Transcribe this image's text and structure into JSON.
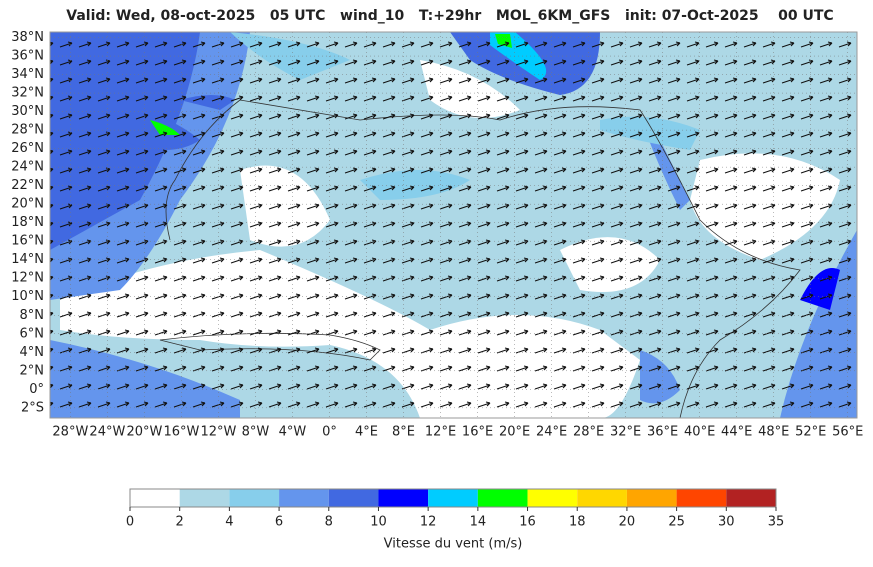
{
  "map": {
    "title": "Valid: Wed, 08-oct-2025   05 UTC   wind_10   T:+29hr   MOL_6KM_GFS   init: 07-Oct-2025    00 UTC",
    "lat_ticks": [
      {
        "value": 38,
        "label": "38°N"
      },
      {
        "value": 36,
        "label": "36°N"
      },
      {
        "value": 34,
        "label": "34°N"
      },
      {
        "value": 32,
        "label": "32°N"
      },
      {
        "value": 30,
        "label": "30°N"
      },
      {
        "value": 28,
        "label": "28°N"
      },
      {
        "value": 26,
        "label": "26°N"
      },
      {
        "value": 24,
        "label": "24°N"
      },
      {
        "value": 22,
        "label": "22°N"
      },
      {
        "value": 20,
        "label": "20°N"
      },
      {
        "value": 18,
        "label": "18°N"
      },
      {
        "value": 16,
        "label": "16°N"
      },
      {
        "value": 14,
        "label": "14°N"
      },
      {
        "value": 12,
        "label": "12°N"
      },
      {
        "value": 10,
        "label": "10°N"
      },
      {
        "value": 8,
        "label": "8°N"
      },
      {
        "value": 6,
        "label": "6°N"
      },
      {
        "value": 4,
        "label": "4°N"
      },
      {
        "value": 2,
        "label": "2°N"
      },
      {
        "value": 0,
        "label": "0°"
      },
      {
        "value": -2,
        "label": "2°S"
      }
    ],
    "lon_ticks": [
      {
        "value": -28,
        "label": "28°W"
      },
      {
        "value": -24,
        "label": "24°W"
      },
      {
        "value": -20,
        "label": "20°W"
      },
      {
        "value": -16,
        "label": "16°W"
      },
      {
        "value": -12,
        "label": "12°W"
      },
      {
        "value": -8,
        "label": "8°W"
      },
      {
        "value": -4,
        "label": "4°W"
      },
      {
        "value": 0,
        "label": "0°"
      },
      {
        "value": 4,
        "label": "4°E"
      },
      {
        "value": 8,
        "label": "8°E"
      },
      {
        "value": 12,
        "label": "12°E"
      },
      {
        "value": 16,
        "label": "16°E"
      },
      {
        "value": 20,
        "label": "20°E"
      },
      {
        "value": 24,
        "label": "24°E"
      },
      {
        "value": 28,
        "label": "28°E"
      },
      {
        "value": 32,
        "label": "32°E"
      },
      {
        "value": 36,
        "label": "36°E"
      },
      {
        "value": 40,
        "label": "40°E"
      },
      {
        "value": 44,
        "label": "44°E"
      },
      {
        "value": 48,
        "label": "48°E"
      },
      {
        "value": 52,
        "label": "52°E"
      },
      {
        "value": 56,
        "label": "56°E"
      }
    ],
    "colorbar": {
      "label": "Vitesse du vent (m/s)",
      "bounds": [
        0,
        2,
        4,
        6,
        8,
        10,
        12,
        14,
        16,
        18,
        20,
        25,
        30,
        35
      ],
      "colors": [
        "#ffffff",
        "#add8e6",
        "#87ceeb",
        "#6495ed",
        "#4169e1",
        "#0000ff",
        "#00ccff",
        "#00ff00",
        "#ffff00",
        "#ffd700",
        "#ffa500",
        "#ff4500",
        "#b22222"
      ]
    }
  }
}
